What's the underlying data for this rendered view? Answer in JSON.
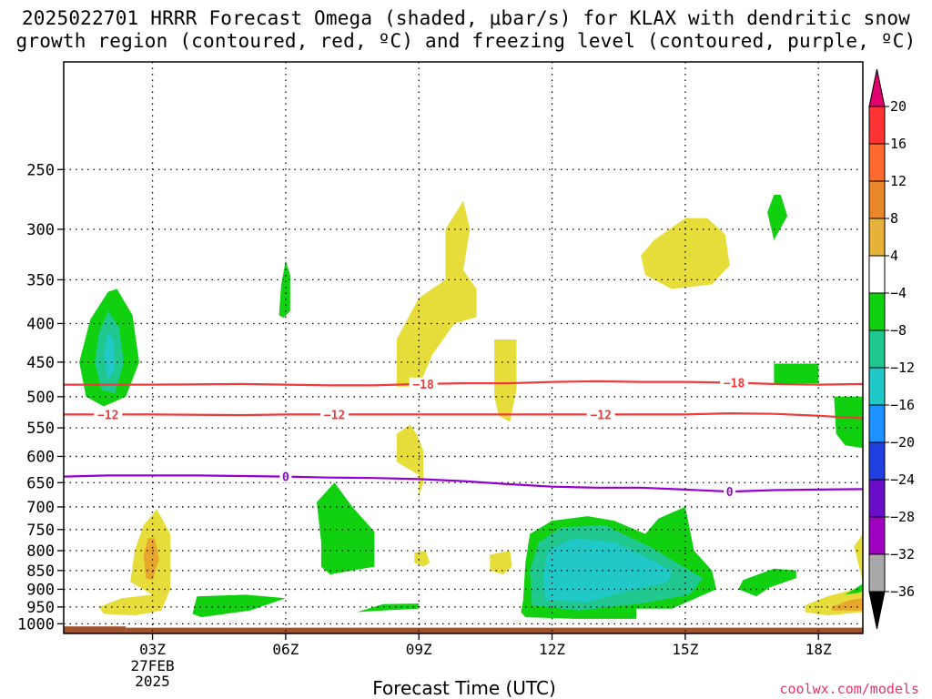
{
  "title_line1": "2025022701 HRRR Forecast Omega (shaded, μbar/s) for KLAX with dendritic snow",
  "title_line2": "growth region (contoured, red, ºC) and freezing level (contoured, purple, ºC)",
  "xlabel": "Forecast Time (UTC)",
  "credit": "coolwx.com/models",
  "colors": {
    "grid": "#000000",
    "dgz_contour": "#ee3b3b",
    "freezing_contour": "#9400d3",
    "ground": "#a0522d",
    "credit": "#e8336b"
  },
  "chart_data": {
    "type": "heatmap",
    "x_axis": {
      "unit": "forecast hour",
      "range": [
        1,
        19
      ],
      "ticks": [
        {
          "x": 3,
          "label": "03Z",
          "sub": [
            "27FEB",
            "2025"
          ]
        },
        {
          "x": 6,
          "label": "06Z"
        },
        {
          "x": 9,
          "label": "09Z"
        },
        {
          "x": 12,
          "label": "12Z"
        },
        {
          "x": 15,
          "label": "15Z"
        },
        {
          "x": 18,
          "label": "18Z"
        }
      ]
    },
    "y_axis": {
      "unit": "hPa",
      "scale": "log",
      "inverted": true,
      "range": [
        1030,
        180
      ],
      "ticks": [
        250,
        300,
        350,
        400,
        450,
        500,
        550,
        600,
        650,
        700,
        750,
        800,
        850,
        900,
        950,
        1000
      ]
    },
    "grid": true,
    "colorbar": {
      "labels": [
        "20",
        "16",
        "12",
        "8",
        "4",
        "−4",
        "−8",
        "−12",
        "−16",
        "−20",
        "−24",
        "−28",
        "−32",
        "−36"
      ],
      "bins": [
        {
          "range": [
            16,
            20
          ],
          "color": "#ff3333"
        },
        {
          "range": [
            12,
            16
          ],
          "color": "#ff6a2e"
        },
        {
          "range": [
            8,
            12
          ],
          "color": "#e8882a"
        },
        {
          "range": [
            4,
            8
          ],
          "color": "#e6b23a"
        },
        {
          "range": [
            -4,
            4
          ],
          "color": "#ffffff"
        },
        {
          "range": [
            -8,
            -4
          ],
          "color": "#10d010"
        },
        {
          "range": [
            -12,
            -8
          ],
          "color": "#20c890"
        },
        {
          "range": [
            -16,
            -12
          ],
          "color": "#20c8c8"
        },
        {
          "range": [
            -20,
            -16
          ],
          "color": "#1e90ff"
        },
        {
          "range": [
            -24,
            -20
          ],
          "color": "#2040e0"
        },
        {
          "range": [
            -28,
            -24
          ],
          "color": "#6a0dc8"
        },
        {
          "range": [
            -32,
            -28
          ],
          "color": "#a000c0"
        },
        {
          "range": [
            -36,
            -32
          ],
          "color": "#a8a8a8"
        }
      ],
      "above_max_color": "#e0006e",
      "below_min_color": "#000000"
    },
    "omega_regions": [
      {
        "color": "#e6dc3a",
        "pts": [
          [
            3.0,
            915
          ],
          [
            2.3,
            925
          ],
          [
            1.8,
            950
          ],
          [
            1.9,
            970
          ],
          [
            2.6,
            975
          ],
          [
            3.2,
            960
          ],
          [
            3.4,
            900
          ],
          [
            3.4,
            760
          ],
          [
            3.1,
            705
          ],
          [
            2.8,
            740
          ],
          [
            2.6,
            800
          ],
          [
            2.5,
            880
          ]
        ]
      },
      {
        "color": "#e8a82e",
        "pts": [
          [
            2.9,
            770
          ],
          [
            2.8,
            810
          ],
          [
            2.85,
            870
          ],
          [
            3.0,
            875
          ],
          [
            3.15,
            820
          ],
          [
            3.05,
            770
          ]
        ]
      },
      {
        "color": "#10d010",
        "pts": [
          [
            2.0,
            363
          ],
          [
            1.6,
            395
          ],
          [
            1.35,
            450
          ],
          [
            1.5,
            500
          ],
          [
            1.9,
            515
          ],
          [
            2.4,
            500
          ],
          [
            2.7,
            450
          ],
          [
            2.55,
            390
          ],
          [
            2.2,
            360
          ]
        ]
      },
      {
        "color": "#20c890",
        "pts": [
          [
            2.0,
            385
          ],
          [
            1.8,
            410
          ],
          [
            1.7,
            450
          ],
          [
            1.85,
            490
          ],
          [
            2.15,
            495
          ],
          [
            2.35,
            450
          ],
          [
            2.25,
            405
          ]
        ]
      },
      {
        "color": "#20c8c8",
        "pts": [
          [
            2.0,
            410
          ],
          [
            1.9,
            440
          ],
          [
            2.0,
            475
          ],
          [
            2.15,
            460
          ],
          [
            2.12,
            420
          ]
        ]
      },
      {
        "color": "#10d010",
        "pts": [
          [
            5.9,
            355
          ],
          [
            5.85,
            390
          ],
          [
            5.95,
            393
          ],
          [
            6.1,
            385
          ],
          [
            6.1,
            345
          ],
          [
            6.0,
            330
          ]
        ]
      },
      {
        "color": "#10d010",
        "pts": [
          [
            4.0,
            920
          ],
          [
            3.9,
            970
          ],
          [
            4.1,
            980
          ],
          [
            5.2,
            960
          ],
          [
            6.0,
            925
          ],
          [
            5.1,
            915
          ]
        ]
      },
      {
        "color": "#10d010",
        "pts": [
          [
            7.1,
            650
          ],
          [
            6.7,
            690
          ],
          [
            6.8,
            780
          ],
          [
            6.8,
            840
          ],
          [
            7.0,
            860
          ],
          [
            8.0,
            840
          ],
          [
            8.0,
            755
          ],
          [
            7.5,
            700
          ]
        ]
      },
      {
        "color": "#10d010",
        "pts": [
          [
            7.6,
            965
          ],
          [
            8.2,
            960
          ],
          [
            9.0,
            955
          ],
          [
            9.0,
            940
          ],
          [
            8.2,
            942
          ]
        ]
      },
      {
        "color": "#e6dc3a",
        "pts": [
          [
            10.0,
            275
          ],
          [
            9.6,
            300
          ],
          [
            9.6,
            350
          ],
          [
            9.0,
            370
          ],
          [
            8.5,
            420
          ],
          [
            8.5,
            485
          ],
          [
            9.0,
            485
          ],
          [
            9.3,
            440
          ],
          [
            9.8,
            400
          ],
          [
            10.3,
            392
          ],
          [
            10.3,
            360
          ],
          [
            10.0,
            340
          ],
          [
            10.15,
            300
          ]
        ]
      },
      {
        "color": "#e6dc3a",
        "pts": [
          [
            8.5,
            560
          ],
          [
            8.5,
            610
          ],
          [
            9.0,
            635
          ],
          [
            9.0,
            680
          ],
          [
            9.1,
            650
          ],
          [
            9.1,
            590
          ],
          [
            8.95,
            560
          ],
          [
            8.8,
            545
          ]
        ]
      },
      {
        "color": "#e6dc3a",
        "pts": [
          [
            8.9,
            805
          ],
          [
            8.9,
            830
          ],
          [
            9.1,
            840
          ],
          [
            9.25,
            830
          ],
          [
            9.15,
            800
          ]
        ]
      },
      {
        "color": "#e6dc3a",
        "pts": [
          [
            10.7,
            420
          ],
          [
            10.7,
            500
          ],
          [
            10.8,
            530
          ],
          [
            11.05,
            540
          ],
          [
            11.2,
            490
          ],
          [
            11.2,
            420
          ]
        ]
      },
      {
        "color": "#e6dc3a",
        "pts": [
          [
            10.6,
            810
          ],
          [
            10.6,
            850
          ],
          [
            10.9,
            860
          ],
          [
            11.1,
            840
          ],
          [
            11.05,
            800
          ]
        ]
      },
      {
        "color": "#10d010",
        "pts": [
          [
            12.0,
            730
          ],
          [
            11.5,
            760
          ],
          [
            11.4,
            830
          ],
          [
            11.35,
            930
          ],
          [
            11.3,
            965
          ],
          [
            11.4,
            980
          ],
          [
            12.5,
            985
          ],
          [
            13.9,
            985
          ],
          [
            13.9,
            955
          ],
          [
            14.7,
            955
          ],
          [
            15.7,
            900
          ],
          [
            15.6,
            850
          ],
          [
            15.2,
            800
          ],
          [
            15.0,
            700
          ],
          [
            14.4,
            725
          ],
          [
            14.1,
            760
          ],
          [
            13.4,
            730
          ],
          [
            12.8,
            720
          ]
        ]
      },
      {
        "color": "#20c890",
        "pts": [
          [
            12.2,
            745
          ],
          [
            11.7,
            780
          ],
          [
            11.5,
            850
          ],
          [
            11.55,
            945
          ],
          [
            12.6,
            960
          ],
          [
            14.0,
            940
          ],
          [
            15.1,
            915
          ],
          [
            15.4,
            870
          ],
          [
            14.8,
            830
          ],
          [
            14.2,
            790
          ],
          [
            13.8,
            770
          ],
          [
            13.2,
            740
          ]
        ]
      },
      {
        "color": "#20c8c8",
        "pts": [
          [
            12.5,
            770
          ],
          [
            11.9,
            800
          ],
          [
            11.8,
            870
          ],
          [
            11.85,
            930
          ],
          [
            12.8,
            935
          ],
          [
            13.7,
            905
          ],
          [
            14.6,
            880
          ],
          [
            14.7,
            850
          ],
          [
            14.0,
            810
          ],
          [
            13.4,
            780
          ]
        ]
      },
      {
        "color": "#e6dc3a",
        "pts": [
          [
            15.0,
            290
          ],
          [
            14.3,
            310
          ],
          [
            14.0,
            325
          ],
          [
            14.1,
            345
          ],
          [
            14.7,
            360
          ],
          [
            15.6,
            355
          ],
          [
            16.0,
            335
          ],
          [
            15.9,
            305
          ],
          [
            15.5,
            290
          ]
        ]
      },
      {
        "color": "#10d010",
        "pts": [
          [
            17.0,
            270
          ],
          [
            16.85,
            285
          ],
          [
            17.0,
            310
          ],
          [
            17.3,
            288
          ],
          [
            17.15,
            270
          ]
        ]
      },
      {
        "color": "#10d010",
        "pts": [
          [
            17.0,
            452
          ],
          [
            17.0,
            480
          ],
          [
            18.0,
            480
          ],
          [
            18.0,
            452
          ]
        ]
      },
      {
        "color": "#10d010",
        "pts": [
          [
            16.3,
            875
          ],
          [
            16.2,
            900
          ],
          [
            16.6,
            920
          ],
          [
            16.9,
            895
          ],
          [
            17.5,
            870
          ],
          [
            17.5,
            850
          ],
          [
            17.0,
            845
          ]
        ]
      },
      {
        "color": "#10d010",
        "pts": [
          [
            19.0,
            500
          ],
          [
            18.35,
            500
          ],
          [
            18.4,
            560
          ],
          [
            18.6,
            580
          ],
          [
            19.0,
            585
          ]
        ]
      },
      {
        "color": "#e6dc3a",
        "pts": [
          [
            18.8,
            900
          ],
          [
            18.2,
            920
          ],
          [
            17.7,
            945
          ],
          [
            17.7,
            965
          ],
          [
            18.2,
            975
          ],
          [
            19.0,
            965
          ],
          [
            19.0,
            890
          ]
        ]
      },
      {
        "color": "#e8a82e",
        "pts": [
          [
            18.7,
            930
          ],
          [
            18.3,
            950
          ],
          [
            18.3,
            960
          ],
          [
            19.0,
            960
          ],
          [
            19.0,
            925
          ]
        ]
      },
      {
        "color": "#10d010",
        "pts": [
          [
            19.0,
            885
          ],
          [
            18.6,
            915
          ],
          [
            18.9,
            910
          ],
          [
            19.0,
            905
          ]
        ]
      },
      {
        "color": "#e6dc3a",
        "pts": [
          [
            19.0,
            760
          ],
          [
            18.8,
            790
          ],
          [
            18.85,
            810
          ],
          [
            19.0,
            880
          ]
        ]
      }
    ],
    "contours": [
      {
        "kind": "dgz",
        "value": -18,
        "color": "#ee3b3b",
        "x": [
          1,
          3,
          5,
          6,
          7,
          8,
          9,
          10,
          11,
          12,
          13,
          14,
          15,
          16,
          17,
          18,
          19
        ],
        "y": [
          482,
          482,
          481,
          482,
          483,
          483,
          481,
          480,
          480,
          478,
          477,
          478,
          478,
          479,
          481,
          482,
          481
        ],
        "labels": [
          {
            "x": 9.1,
            "text": "−18"
          },
          {
            "x": 16.1,
            "text": "−18"
          }
        ]
      },
      {
        "kind": "dgz",
        "value": -12,
        "color": "#ee3b3b",
        "x": [
          1,
          3,
          5,
          6,
          7,
          8,
          9,
          10,
          11,
          12,
          13,
          14,
          15,
          16,
          17,
          18,
          19
        ],
        "y": [
          528,
          528,
          529,
          528,
          528,
          528,
          528,
          528,
          528,
          528,
          528,
          528,
          528,
          526,
          527,
          530,
          534
        ],
        "labels": [
          {
            "x": 2.0,
            "text": "−12"
          },
          {
            "x": 7.1,
            "text": "−12"
          },
          {
            "x": 13.1,
            "text": "−12"
          }
        ]
      },
      {
        "kind": "freezing",
        "value": 0,
        "color": "#9400d3",
        "x": [
          1,
          2,
          3,
          4,
          5,
          6,
          7,
          8,
          9,
          10,
          11,
          12,
          13,
          14,
          15,
          16,
          17,
          18,
          19
        ],
        "y": [
          638,
          636,
          636,
          636,
          637,
          638,
          640,
          641,
          643,
          647,
          653,
          658,
          660,
          660,
          664,
          668,
          665,
          664,
          663
        ],
        "labels": [
          {
            "x": 6.0,
            "text": "0"
          },
          {
            "x": 16.0,
            "text": "0"
          }
        ]
      }
    ],
    "ground": {
      "color": "#a0522d",
      "x": [
        1,
        2.4,
        2.4,
        19
      ],
      "y": [
        1008,
        1008,
        1012,
        1012
      ]
    }
  }
}
